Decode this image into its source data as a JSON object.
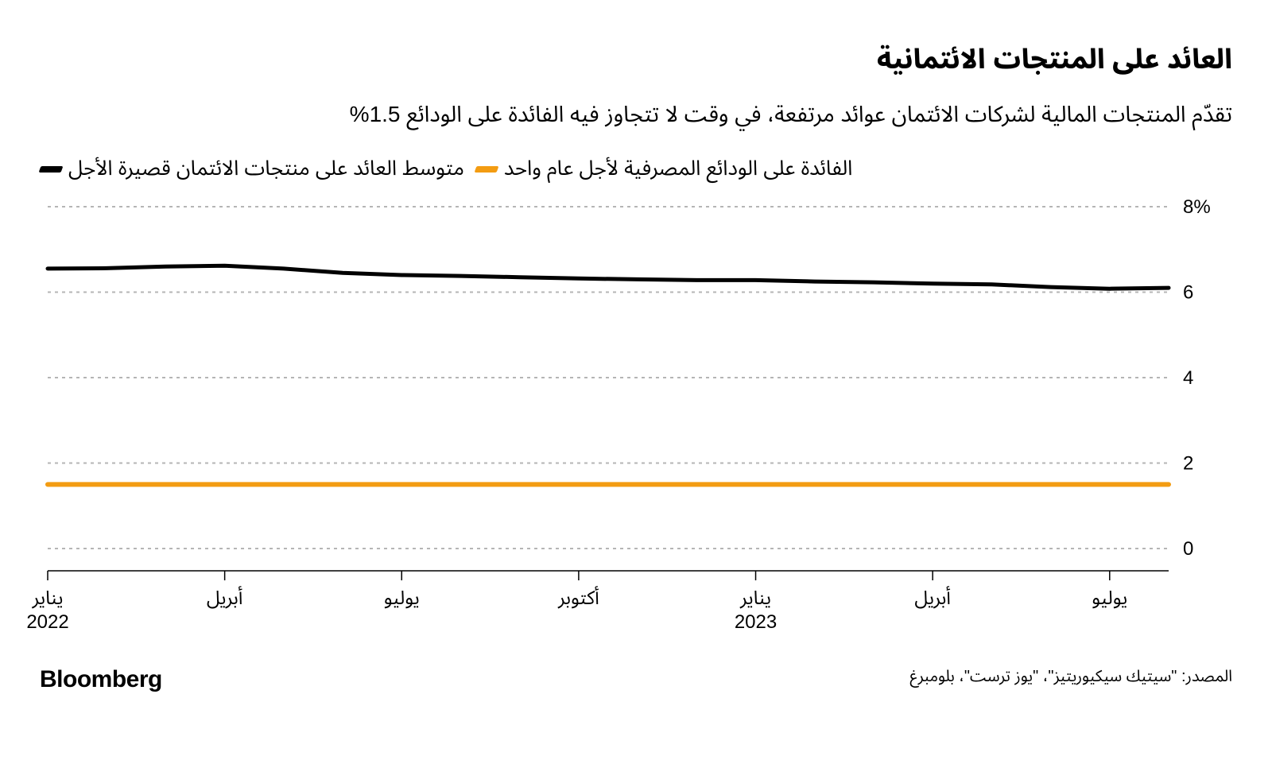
{
  "title": "العائد على المنتجات الائتمانية",
  "subtitle": "تقدّم المنتجات المالية لشركات الائتمان عوائد مرتفعة، في وقت لا تتجاوز فيه الفائدة على الودائع 1.5%",
  "legend": {
    "series1": {
      "label": "متوسط العائد على منتجات الائتمان قصيرة الأجل",
      "color": "#000000"
    },
    "series2": {
      "label": "الفائدة على الودائع المصرفية لأجل عام واحد",
      "color": "#f39c12"
    }
  },
  "source": "المصدر: \"سيتيك سيكيوريتيز\"، \"يوز ترست\"، بلومبرغ",
  "brand": "Bloomberg",
  "chart": {
    "type": "line",
    "background_color": "#ffffff",
    "grid_color": "#b5b5b5",
    "axis_color": "#000000",
    "text_color": "#000000",
    "line_width_series1": 5,
    "line_width_series2": 6,
    "y": {
      "min": 0,
      "max": 8,
      "ticks": [
        0,
        2,
        4,
        6,
        8
      ],
      "unit_label": "8%",
      "tick_labels": [
        "0",
        "2",
        "4",
        "6",
        "8"
      ]
    },
    "x": {
      "domain_months": [
        "2022-01",
        "2022-02",
        "2022-03",
        "2022-04",
        "2022-05",
        "2022-06",
        "2022-07",
        "2022-08",
        "2022-09",
        "2022-10",
        "2022-11",
        "2022-12",
        "2023-01",
        "2023-02",
        "2023-03",
        "2023-04",
        "2023-05",
        "2023-06",
        "2023-07",
        "2023-08"
      ],
      "ticks": [
        {
          "idx": 0,
          "label": "يناير",
          "year": "2022"
        },
        {
          "idx": 3,
          "label": "أبريل",
          "year": ""
        },
        {
          "idx": 6,
          "label": "يوليو",
          "year": ""
        },
        {
          "idx": 9,
          "label": "أكتوبر",
          "year": ""
        },
        {
          "idx": 12,
          "label": "يناير",
          "year": "2023"
        },
        {
          "idx": 15,
          "label": "أبريل",
          "year": ""
        },
        {
          "idx": 18,
          "label": "يوليو",
          "year": ""
        }
      ]
    },
    "series1_values": [
      6.55,
      6.56,
      6.6,
      6.62,
      6.55,
      6.45,
      6.4,
      6.38,
      6.35,
      6.32,
      6.3,
      6.28,
      6.28,
      6.25,
      6.23,
      6.2,
      6.18,
      6.12,
      6.08,
      6.1
    ],
    "series2_values": [
      1.5,
      1.5,
      1.5,
      1.5,
      1.5,
      1.5,
      1.5,
      1.5,
      1.5,
      1.5,
      1.5,
      1.5,
      1.5,
      1.5,
      1.5,
      1.5,
      1.5,
      1.5,
      1.5,
      1.5
    ]
  }
}
